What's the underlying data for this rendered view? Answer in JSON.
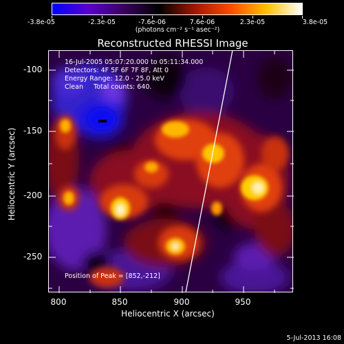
{
  "colorbar": {
    "tick_labels": [
      "-3.8e-05",
      "-2.3e-05",
      "-7.6e-06",
      "7.6e-06",
      "2.3e-05",
      "3.8e-05"
    ],
    "units": "(photons cm⁻² s⁻¹ asec⁻²)",
    "colors": [
      "#0000ff",
      "#5a00cc",
      "#3a0060",
      "#000000",
      "#a01800",
      "#ff4a00",
      "#ffc000",
      "#ffffff"
    ]
  },
  "title": "Reconstructed RHESSI Image",
  "info": {
    "time_range": "16-Jul-2005 05:07:20.000 to 05:11:34.000",
    "detectors": "Detectors: 4F 5F 6F 7F 8F, Att 0",
    "energy_range": "Energy Range: 12.0 - 25.0 keV",
    "clean": "Clean     Total counts: 640.",
    "peak": "Position of Peak = [852,-212]"
  },
  "x_axis": {
    "title": "Heliocentric X (arcsec)",
    "tick_labels": [
      "800",
      "850",
      "900",
      "950"
    ]
  },
  "y_axis": {
    "title": "Heliocentric Y (arcsec)",
    "tick_labels": [
      "-100",
      "-150",
      "-200",
      "-250"
    ]
  },
  "footer": "5-Jul-2013 16:08"
}
